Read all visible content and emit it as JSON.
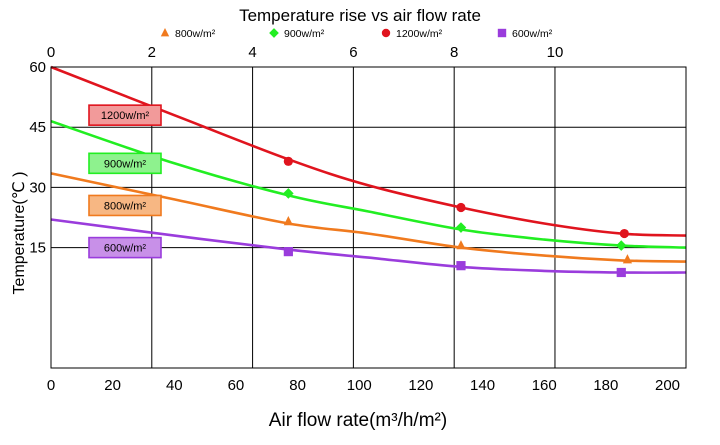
{
  "chart_data": {
    "type": "line",
    "title": "Temperature rise vs air flow rate",
    "xlabel": "Air flow rate(m³/h/m²)",
    "ylabel": "Temperature(℃ )",
    "x_bottom": {
      "min": 0,
      "max": 206,
      "ticks": [
        0,
        20,
        40,
        60,
        80,
        100,
        120,
        140,
        160,
        180,
        200
      ]
    },
    "x_top": {
      "min": 0,
      "max": 12.6,
      "ticks": [
        0,
        2,
        4,
        6,
        8,
        10
      ]
    },
    "y": {
      "min": -15,
      "max": 60,
      "ticks": [
        15,
        30,
        45,
        60
      ]
    },
    "grid": true,
    "legend_position": "top",
    "series": [
      {
        "name": "1200w/m²",
        "label": "1200w/m²",
        "color": "#e0141e",
        "marker": "circle",
        "box_fill": "#f29a9a",
        "curve_x": [
          0,
          40,
          77,
          103,
          133,
          160,
          185,
          206
        ],
        "curve_y": [
          60,
          48,
          37,
          30.5,
          25,
          21,
          18.5,
          18
        ],
        "points_x": [
          77,
          133,
          186
        ],
        "points_y": [
          36.5,
          25,
          18.5
        ]
      },
      {
        "name": "900w/m²",
        "label": "900w/m²",
        "color": "#22ee22",
        "marker": "diamond",
        "box_fill": "#8ef28e",
        "curve_x": [
          0,
          40,
          77,
          103,
          133,
          160,
          185,
          206
        ],
        "curve_y": [
          46.5,
          36,
          28,
          24,
          19.5,
          17,
          15.5,
          15
        ],
        "points_x": [
          77,
          133,
          185
        ],
        "points_y": [
          28.5,
          20,
          15.5
        ]
      },
      {
        "name": "800w/m²",
        "label": "800w/m²",
        "color": "#f07a1e",
        "marker": "triangle",
        "box_fill": "#f7b783",
        "curve_x": [
          0,
          40,
          77,
          103,
          133,
          160,
          185,
          206
        ],
        "curve_y": [
          33.5,
          27,
          21,
          18.5,
          15,
          13,
          11.8,
          11.5
        ],
        "points_x": [
          77,
          133,
          187
        ],
        "points_y": [
          21.5,
          15.5,
          12
        ]
      },
      {
        "name": "600w/m²",
        "label": "600w/m²",
        "color": "#9a3cdc",
        "marker": "square",
        "box_fill": "#c890e8",
        "curve_x": [
          0,
          40,
          77,
          103,
          133,
          160,
          185,
          206
        ],
        "curve_y": [
          22,
          18,
          14.5,
          12.5,
          10.2,
          9.2,
          8.8,
          8.8
        ],
        "points_x": [
          77,
          133,
          185
        ],
        "points_y": [
          14,
          10.5,
          8.8
        ]
      }
    ],
    "legend_order": [
      2,
      1,
      0,
      3
    ]
  }
}
